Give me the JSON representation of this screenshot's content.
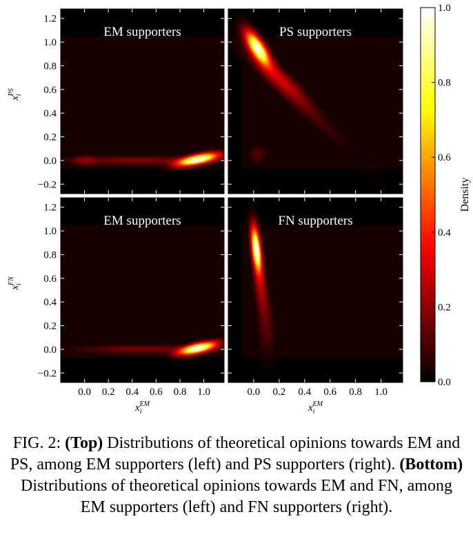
{
  "chart_data": {
    "type": "heatmap",
    "colormap": "hot",
    "panels": [
      {
        "title": "EM supporters",
        "x_var": "x",
        "x_sub": "i",
        "x_sup": "EM",
        "y_var": "x",
        "y_sub": "i",
        "y_sup": "PS",
        "xlim": [
          -0.2,
          1.17
        ],
        "ylim": [
          -0.28,
          1.28
        ],
        "blobs": [
          {
            "x": 0.95,
            "y": 0.01,
            "sx": 0.11,
            "sy": 0.035,
            "rho": 0.65,
            "amp": 1.0
          },
          {
            "x": 0.45,
            "y": 0.0,
            "sx": 0.4,
            "sy": 0.025,
            "rho": 0.0,
            "amp": 0.13
          },
          {
            "x": 0.0,
            "y": 0.0,
            "sx": 0.06,
            "sy": 0.03,
            "rho": 0.0,
            "amp": 0.1
          }
        ]
      },
      {
        "title": "PS supporters",
        "x_var": "x",
        "x_sub": "i",
        "x_sup": "EM",
        "y_var": "x",
        "y_sub": "i",
        "y_sup": "PS",
        "xlim": [
          -0.2,
          1.17
        ],
        "ylim": [
          -0.28,
          1.28
        ],
        "blobs": [
          {
            "x": 0.03,
            "y": 0.95,
            "sx": 0.06,
            "sy": 0.09,
            "rho": -0.75,
            "amp": 1.0
          },
          {
            "x": 0.2,
            "y": 0.7,
            "sx": 0.14,
            "sy": 0.14,
            "rho": -0.9,
            "amp": 0.2
          },
          {
            "x": 0.35,
            "y": 0.5,
            "sx": 0.28,
            "sy": 0.28,
            "rho": -0.97,
            "amp": 0.07
          },
          {
            "x": 0.03,
            "y": 0.05,
            "sx": 0.05,
            "sy": 0.05,
            "rho": 0.0,
            "amp": 0.08
          }
        ]
      },
      {
        "title": "EM supporters",
        "x_var": "x",
        "x_sub": "i",
        "x_sup": "EM",
        "y_var": "x",
        "y_sub": "i",
        "y_sup": "FN",
        "xlim": [
          -0.2,
          1.17
        ],
        "ylim": [
          -0.28,
          1.28
        ],
        "blobs": [
          {
            "x": 0.95,
            "y": 0.01,
            "sx": 0.1,
            "sy": 0.035,
            "rho": 0.65,
            "amp": 1.0
          },
          {
            "x": 0.5,
            "y": 0.0,
            "sx": 0.4,
            "sy": 0.025,
            "rho": 0.0,
            "amp": 0.12
          }
        ]
      },
      {
        "title": "FN supporters",
        "x_var": "x",
        "x_sub": "i",
        "x_sup": "EM",
        "y_var": "x",
        "y_sub": "i",
        "y_sup": "FN",
        "xlim": [
          -0.2,
          1.17
        ],
        "ylim": [
          -0.28,
          1.28
        ],
        "blobs": [
          {
            "x": 0.02,
            "y": 0.85,
            "sx": 0.025,
            "sy": 0.12,
            "rho": -0.5,
            "amp": 1.0
          },
          {
            "x": 0.05,
            "y": 0.55,
            "sx": 0.04,
            "sy": 0.2,
            "rho": -0.6,
            "amp": 0.2
          },
          {
            "x": 0.1,
            "y": 0.15,
            "sx": 0.05,
            "sy": 0.15,
            "rho": 0.0,
            "amp": 0.06
          }
        ]
      }
    ],
    "x_ticks": [
      "0.0",
      "0.2",
      "0.4",
      "0.6",
      "0.8",
      "1.0"
    ],
    "y_ticks": [
      "−0.2",
      "0.0",
      "0.2",
      "0.4",
      "0.6",
      "0.8",
      "1.0",
      "1.2"
    ],
    "colorbar": {
      "label": "Density",
      "range": [
        0.0,
        1.0
      ],
      "ticks": [
        "0.0",
        "0.2",
        "0.4",
        "0.6",
        "0.8",
        "1.0"
      ]
    }
  },
  "caption": {
    "fig_label": "FIG. 2:",
    "top_bold": "(Top)",
    "top_text": "Distributions of theoretical opinions towards EM and PS, among EM supporters (left) and PS supporters (right).",
    "bottom_bold": "(Bottom)",
    "bottom_text": "Distributions of theoretical opinions towards EM and FN, among EM supporters (left) and FN supporters (right)."
  }
}
